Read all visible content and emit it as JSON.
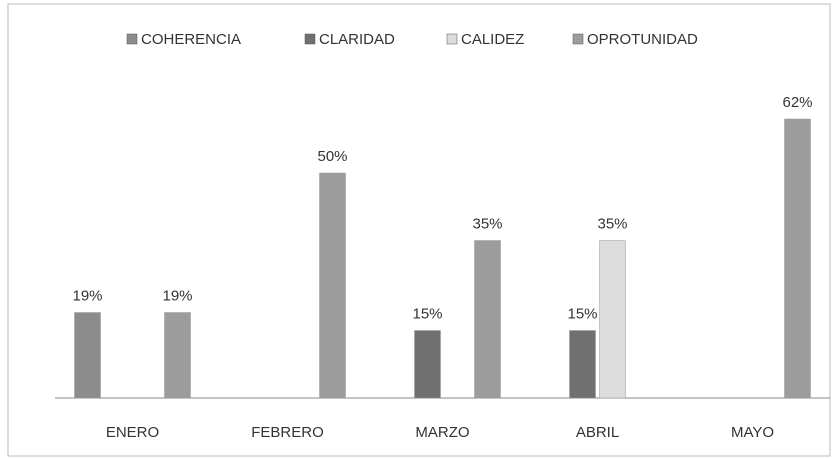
{
  "chart_data": {
    "type": "bar",
    "categories": [
      "ENERO",
      "FEBRERO",
      "MARZO",
      "ABRIL",
      "MAYO"
    ],
    "series": [
      {
        "name": "COHERENCIA",
        "color": "#8c8c8c",
        "values": [
          19,
          null,
          null,
          null,
          null
        ],
        "value_labels": [
          "19%",
          null,
          null,
          null,
          null
        ]
      },
      {
        "name": "CLARIDAD",
        "color": "#707070",
        "values": [
          null,
          null,
          15,
          15,
          null
        ],
        "value_labels": [
          null,
          null,
          "15%",
          "15%",
          null
        ]
      },
      {
        "name": "CALIDEZ",
        "color": "#dcdcdc",
        "values": [
          null,
          null,
          null,
          35,
          null
        ],
        "value_labels": [
          null,
          null,
          null,
          "35%",
          null
        ]
      },
      {
        "name": "OPROTUNIDAD",
        "color": "#9c9c9c",
        "values": [
          19,
          50,
          35,
          null,
          62
        ],
        "value_labels": [
          "19%",
          "50%",
          "35%",
          null,
          "62%"
        ]
      }
    ],
    "ylim": [
      0,
      70
    ]
  }
}
